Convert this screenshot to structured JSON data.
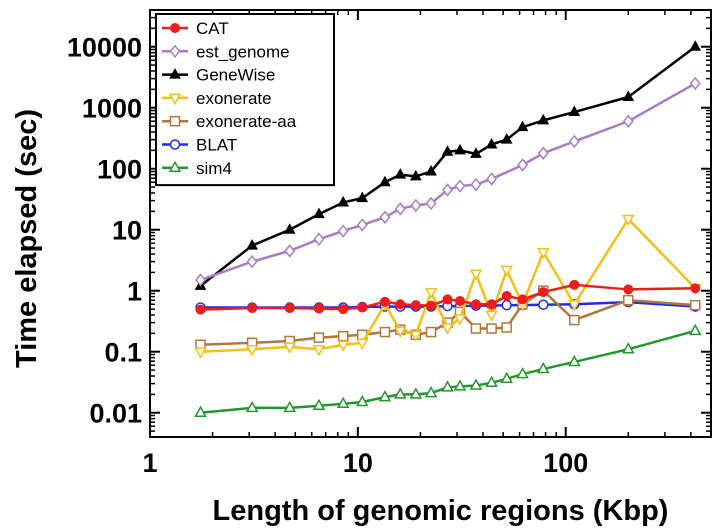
{
  "chart_data": {
    "type": "line",
    "xlabel": "Length of genomic regions (Kbp)",
    "ylabel": "Time elapsed (sec)",
    "xscale": "log",
    "yscale": "log",
    "xlim": [
      1,
      500
    ],
    "ylim": [
      0.004,
      40000
    ],
    "x_ticks": [
      {
        "value": 1,
        "label": "1"
      },
      {
        "value": 10,
        "label": "10"
      },
      {
        "value": 100,
        "label": "100"
      }
    ],
    "y_ticks": [
      {
        "value": 0.01,
        "label": "0.01"
      },
      {
        "value": 0.1,
        "label": "0.1"
      },
      {
        "value": 1,
        "label": "1"
      },
      {
        "value": 10,
        "label": "10"
      },
      {
        "value": 100,
        "label": "100"
      },
      {
        "value": 1000,
        "label": "1000"
      },
      {
        "value": 10000,
        "label": "10000"
      }
    ],
    "grid": false,
    "legend_position": "top-left",
    "series": [
      {
        "name": "CAT",
        "color": "#ee1c1c",
        "marker": "filled-circle",
        "points": [
          [
            1.75,
            0.49
          ],
          [
            3.1,
            0.52
          ],
          [
            4.7,
            0.52
          ],
          [
            6.5,
            0.51
          ],
          [
            8.5,
            0.5
          ],
          [
            10.5,
            0.53
          ],
          [
            13.5,
            0.66
          ],
          [
            16.0,
            0.6
          ],
          [
            19.0,
            0.58
          ],
          [
            22.5,
            0.57
          ],
          [
            27.0,
            0.72
          ],
          [
            31.0,
            0.68
          ],
          [
            37.0,
            0.6
          ],
          [
            44.0,
            0.6
          ],
          [
            52.0,
            0.82
          ],
          [
            62.0,
            0.72
          ],
          [
            78.0,
            0.95
          ],
          [
            110.0,
            1.25
          ],
          [
            200.0,
            1.05
          ],
          [
            420.0,
            1.1
          ]
        ]
      },
      {
        "name": "est_genome",
        "color": "#a87bc4",
        "marker": "open-diamond",
        "points": [
          [
            1.75,
            1.5
          ],
          [
            3.1,
            3.0
          ],
          [
            4.7,
            4.5
          ],
          [
            6.5,
            7.0
          ],
          [
            8.5,
            9.5
          ],
          [
            10.5,
            12.0
          ],
          [
            13.5,
            16.0
          ],
          [
            16.0,
            22.0
          ],
          [
            19.0,
            25.0
          ],
          [
            22.5,
            27.0
          ],
          [
            27.0,
            45.0
          ],
          [
            31.0,
            52.0
          ],
          [
            37.0,
            55.0
          ],
          [
            44.0,
            68.0
          ],
          [
            62.0,
            115.0
          ],
          [
            78.0,
            180.0
          ],
          [
            110.0,
            280.0
          ],
          [
            200.0,
            600.0
          ],
          [
            420.0,
            2500.0
          ]
        ]
      },
      {
        "name": "GeneWise",
        "color": "#000000",
        "marker": "filled-triangle",
        "points": [
          [
            1.75,
            1.2
          ],
          [
            3.1,
            5.5
          ],
          [
            4.7,
            10.0
          ],
          [
            6.5,
            18.0
          ],
          [
            8.5,
            28.0
          ],
          [
            10.5,
            33.0
          ],
          [
            13.5,
            60.0
          ],
          [
            16.0,
            80.0
          ],
          [
            19.0,
            75.0
          ],
          [
            22.5,
            90.0
          ],
          [
            27.0,
            190.0
          ],
          [
            31.0,
            200.0
          ],
          [
            37.0,
            175.0
          ],
          [
            44.0,
            250.0
          ],
          [
            52.0,
            300.0
          ],
          [
            62.0,
            480.0
          ],
          [
            78.0,
            620.0
          ],
          [
            110.0,
            850.0
          ],
          [
            200.0,
            1500.0
          ],
          [
            420.0,
            10000.0
          ]
        ]
      },
      {
        "name": "exonerate",
        "color": "#f5c011",
        "marker": "open-inverted-triangle",
        "points": [
          [
            1.75,
            0.1
          ],
          [
            3.1,
            0.11
          ],
          [
            4.7,
            0.12
          ],
          [
            6.5,
            0.11
          ],
          [
            8.5,
            0.13
          ],
          [
            10.5,
            0.14
          ],
          [
            13.5,
            0.6
          ],
          [
            16.0,
            0.22
          ],
          [
            19.0,
            0.19
          ],
          [
            22.5,
            0.95
          ],
          [
            27.0,
            0.25
          ],
          [
            31.0,
            0.35
          ],
          [
            37.0,
            1.9
          ],
          [
            44.0,
            0.4
          ],
          [
            52.0,
            2.2
          ],
          [
            62.0,
            0.6
          ],
          [
            78.0,
            4.3
          ],
          [
            110.0,
            0.6
          ],
          [
            200.0,
            15.0
          ],
          [
            420.0,
            1.1
          ]
        ]
      },
      {
        "name": "exonerate-aa",
        "color": "#b0763e",
        "marker": "open-square",
        "points": [
          [
            1.75,
            0.13
          ],
          [
            3.1,
            0.14
          ],
          [
            4.7,
            0.15
          ],
          [
            6.5,
            0.17
          ],
          [
            8.5,
            0.18
          ],
          [
            10.5,
            0.19
          ],
          [
            13.5,
            0.21
          ],
          [
            16.0,
            0.23
          ],
          [
            19.0,
            0.19
          ],
          [
            22.5,
            0.21
          ],
          [
            27.0,
            0.3
          ],
          [
            31.0,
            0.45
          ],
          [
            37.0,
            0.24
          ],
          [
            44.0,
            0.24
          ],
          [
            52.0,
            0.25
          ],
          [
            62.0,
            0.6
          ],
          [
            78.0,
            1.0
          ],
          [
            110.0,
            0.33
          ],
          [
            200.0,
            0.7
          ],
          [
            420.0,
            0.58
          ]
        ]
      },
      {
        "name": "BLAT",
        "color": "#1f2ee8",
        "marker": "open-circle",
        "points": [
          [
            1.75,
            0.53
          ],
          [
            3.1,
            0.53
          ],
          [
            4.7,
            0.53
          ],
          [
            6.5,
            0.53
          ],
          [
            8.5,
            0.53
          ],
          [
            10.5,
            0.54
          ],
          [
            13.5,
            0.55
          ],
          [
            16.0,
            0.55
          ],
          [
            19.0,
            0.55
          ],
          [
            22.5,
            0.55
          ],
          [
            27.0,
            0.56
          ],
          [
            31.0,
            0.56
          ],
          [
            37.0,
            0.57
          ],
          [
            44.0,
            0.57
          ],
          [
            52.0,
            0.58
          ],
          [
            62.0,
            0.58
          ],
          [
            78.0,
            0.59
          ],
          [
            110.0,
            0.6
          ],
          [
            200.0,
            0.65
          ],
          [
            420.0,
            0.55
          ]
        ]
      },
      {
        "name": "sim4",
        "color": "#24962c",
        "marker": "open-triangle",
        "points": [
          [
            1.75,
            0.01
          ],
          [
            3.1,
            0.012
          ],
          [
            4.7,
            0.012
          ],
          [
            6.5,
            0.013
          ],
          [
            8.5,
            0.014
          ],
          [
            10.5,
            0.015
          ],
          [
            13.5,
            0.018
          ],
          [
            16.0,
            0.02
          ],
          [
            19.0,
            0.02
          ],
          [
            22.5,
            0.021
          ],
          [
            27.0,
            0.026
          ],
          [
            31.0,
            0.027
          ],
          [
            37.0,
            0.028
          ],
          [
            44.0,
            0.031
          ],
          [
            52.0,
            0.036
          ],
          [
            62.0,
            0.043
          ],
          [
            78.0,
            0.052
          ],
          [
            110.0,
            0.068
          ],
          [
            200.0,
            0.11
          ],
          [
            420.0,
            0.22
          ]
        ]
      }
    ]
  }
}
